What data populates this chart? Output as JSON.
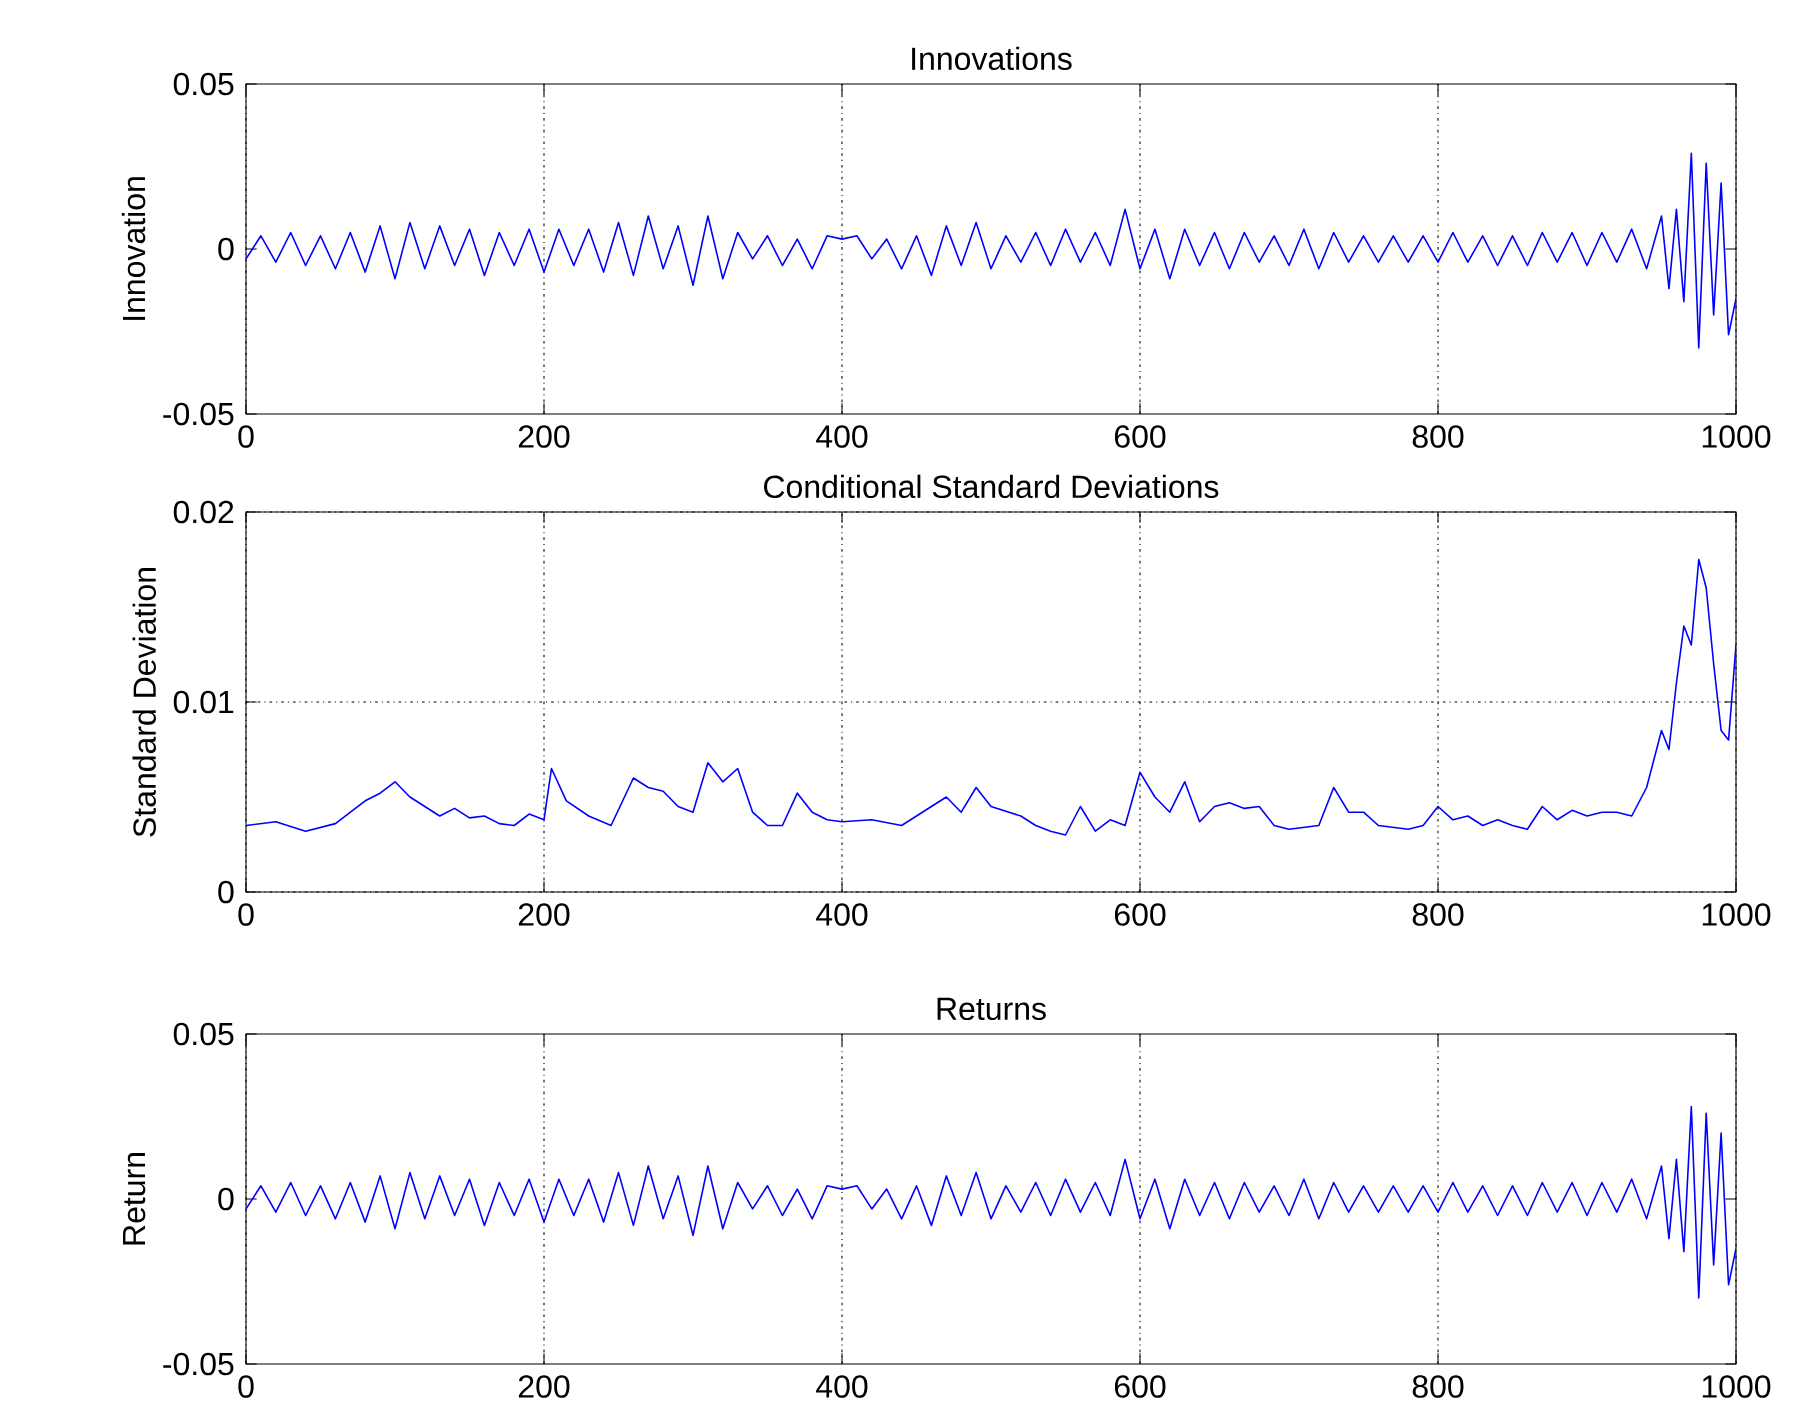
{
  "chart_data": [
    {
      "type": "line",
      "title": "Innovations",
      "ylabel": "Innovation",
      "grid": "x",
      "xlim": [
        0,
        1000
      ],
      "ylim": [
        -0.05,
        0.05
      ],
      "xticks": [
        0,
        200,
        400,
        600,
        800,
        1000
      ],
      "yticks": [
        -0.05,
        0,
        0.05
      ],
      "x": [
        0,
        10,
        20,
        30,
        40,
        50,
        60,
        70,
        80,
        90,
        100,
        110,
        120,
        130,
        140,
        150,
        160,
        170,
        180,
        190,
        200,
        210,
        220,
        230,
        240,
        250,
        260,
        270,
        280,
        290,
        300,
        310,
        320,
        330,
        340,
        350,
        360,
        370,
        380,
        390,
        400,
        410,
        420,
        430,
        440,
        450,
        460,
        470,
        480,
        490,
        500,
        510,
        520,
        530,
        540,
        550,
        560,
        570,
        580,
        590,
        600,
        610,
        620,
        630,
        640,
        650,
        660,
        670,
        680,
        690,
        700,
        710,
        720,
        730,
        740,
        750,
        760,
        770,
        780,
        790,
        800,
        810,
        820,
        830,
        840,
        850,
        860,
        870,
        880,
        890,
        900,
        910,
        920,
        930,
        940,
        950,
        955,
        960,
        965,
        970,
        975,
        980,
        985,
        990,
        995,
        1000
      ],
      "series": [
        {
          "color": "#0000ff",
          "values": [
            -0.003,
            0.004,
            -0.004,
            0.005,
            -0.005,
            0.004,
            -0.006,
            0.005,
            -0.007,
            0.007,
            -0.009,
            0.008,
            -0.006,
            0.007,
            -0.005,
            0.006,
            -0.008,
            0.005,
            -0.005,
            0.006,
            -0.007,
            0.006,
            -0.005,
            0.006,
            -0.007,
            0.008,
            -0.008,
            0.01,
            -0.006,
            0.007,
            -0.011,
            0.01,
            -0.009,
            0.005,
            -0.003,
            0.004,
            -0.005,
            0.003,
            -0.006,
            0.004,
            0.003,
            0.004,
            -0.003,
            0.003,
            -0.006,
            0.004,
            -0.008,
            0.007,
            -0.005,
            0.008,
            -0.006,
            0.004,
            -0.004,
            0.005,
            -0.005,
            0.006,
            -0.004,
            0.005,
            -0.005,
            0.012,
            -0.006,
            0.006,
            -0.009,
            0.006,
            -0.005,
            0.005,
            -0.006,
            0.005,
            -0.004,
            0.004,
            -0.005,
            0.006,
            -0.006,
            0.005,
            -0.004,
            0.004,
            -0.004,
            0.004,
            -0.004,
            0.004,
            -0.004,
            0.005,
            -0.004,
            0.004,
            -0.005,
            0.004,
            -0.005,
            0.005,
            -0.004,
            0.005,
            -0.005,
            0.005,
            -0.004,
            0.006,
            -0.006,
            0.01,
            -0.012,
            0.012,
            -0.016,
            0.029,
            -0.03,
            0.026,
            -0.02,
            0.02,
            -0.026,
            -0.015
          ]
        }
      ]
    },
    {
      "type": "line",
      "title": "Conditional Standard Deviations",
      "ylabel": "Standard Deviation",
      "grid": true,
      "xlim": [
        0,
        1000
      ],
      "ylim": [
        0,
        0.02
      ],
      "xticks": [
        0,
        200,
        400,
        600,
        800,
        1000
      ],
      "yticks": [
        0,
        0.01,
        0.02
      ],
      "x": [
        0,
        20,
        40,
        60,
        80,
        90,
        100,
        110,
        120,
        130,
        140,
        150,
        160,
        170,
        180,
        190,
        200,
        205,
        215,
        230,
        245,
        260,
        270,
        280,
        290,
        300,
        310,
        320,
        330,
        340,
        350,
        360,
        370,
        380,
        390,
        400,
        420,
        440,
        460,
        470,
        480,
        490,
        500,
        520,
        530,
        540,
        550,
        560,
        570,
        580,
        590,
        600,
        610,
        620,
        630,
        640,
        650,
        660,
        670,
        680,
        690,
        700,
        720,
        730,
        740,
        750,
        760,
        780,
        790,
        800,
        810,
        820,
        830,
        840,
        850,
        860,
        870,
        880,
        890,
        900,
        910,
        920,
        930,
        940,
        950,
        955,
        960,
        965,
        970,
        975,
        980,
        985,
        990,
        995,
        1000
      ],
      "series": [
        {
          "color": "#0000ff",
          "values": [
            0.0035,
            0.0037,
            0.0032,
            0.0036,
            0.0048,
            0.0052,
            0.0058,
            0.005,
            0.0045,
            0.004,
            0.0044,
            0.0039,
            0.004,
            0.0036,
            0.0035,
            0.0041,
            0.0038,
            0.0065,
            0.0048,
            0.004,
            0.0035,
            0.006,
            0.0055,
            0.0053,
            0.0045,
            0.0042,
            0.0068,
            0.0058,
            0.0065,
            0.0042,
            0.0035,
            0.0035,
            0.0052,
            0.0042,
            0.0038,
            0.0037,
            0.0038,
            0.0035,
            0.0045,
            0.005,
            0.0042,
            0.0055,
            0.0045,
            0.004,
            0.0035,
            0.0032,
            0.003,
            0.0045,
            0.0032,
            0.0038,
            0.0035,
            0.0063,
            0.005,
            0.0042,
            0.0058,
            0.0037,
            0.0045,
            0.0047,
            0.0044,
            0.0045,
            0.0035,
            0.0033,
            0.0035,
            0.0055,
            0.0042,
            0.0042,
            0.0035,
            0.0033,
            0.0035,
            0.0045,
            0.0038,
            0.004,
            0.0035,
            0.0038,
            0.0035,
            0.0033,
            0.0045,
            0.0038,
            0.0043,
            0.004,
            0.0042,
            0.0042,
            0.004,
            0.0055,
            0.0085,
            0.0075,
            0.011,
            0.014,
            0.013,
            0.0175,
            0.016,
            0.012,
            0.0085,
            0.008,
            0.013
          ]
        }
      ]
    },
    {
      "type": "line",
      "title": "Returns",
      "ylabel": "Return",
      "grid": "x",
      "xlim": [
        0,
        1000
      ],
      "ylim": [
        -0.05,
        0.05
      ],
      "xticks": [
        0,
        200,
        400,
        600,
        800,
        1000
      ],
      "yticks": [
        -0.05,
        0,
        0.05
      ],
      "x": [
        0,
        10,
        20,
        30,
        40,
        50,
        60,
        70,
        80,
        90,
        100,
        110,
        120,
        130,
        140,
        150,
        160,
        170,
        180,
        190,
        200,
        210,
        220,
        230,
        240,
        250,
        260,
        270,
        280,
        290,
        300,
        310,
        320,
        330,
        340,
        350,
        360,
        370,
        380,
        390,
        400,
        410,
        420,
        430,
        440,
        450,
        460,
        470,
        480,
        490,
        500,
        510,
        520,
        530,
        540,
        550,
        560,
        570,
        580,
        590,
        600,
        610,
        620,
        630,
        640,
        650,
        660,
        670,
        680,
        690,
        700,
        710,
        720,
        730,
        740,
        750,
        760,
        770,
        780,
        790,
        800,
        810,
        820,
        830,
        840,
        850,
        860,
        870,
        880,
        890,
        900,
        910,
        920,
        930,
        940,
        950,
        955,
        960,
        965,
        970,
        975,
        980,
        985,
        990,
        995,
        1000
      ],
      "series": [
        {
          "color": "#0000ff",
          "values": [
            -0.003,
            0.004,
            -0.004,
            0.005,
            -0.005,
            0.004,
            -0.006,
            0.005,
            -0.007,
            0.007,
            -0.009,
            0.008,
            -0.006,
            0.007,
            -0.005,
            0.006,
            -0.008,
            0.005,
            -0.005,
            0.006,
            -0.007,
            0.006,
            -0.005,
            0.006,
            -0.007,
            0.008,
            -0.008,
            0.01,
            -0.006,
            0.007,
            -0.011,
            0.01,
            -0.009,
            0.005,
            -0.003,
            0.004,
            -0.005,
            0.003,
            -0.006,
            0.004,
            0.003,
            0.004,
            -0.003,
            0.003,
            -0.006,
            0.004,
            -0.008,
            0.007,
            -0.005,
            0.008,
            -0.006,
            0.004,
            -0.004,
            0.005,
            -0.005,
            0.006,
            -0.004,
            0.005,
            -0.005,
            0.012,
            -0.006,
            0.006,
            -0.009,
            0.006,
            -0.005,
            0.005,
            -0.006,
            0.005,
            -0.004,
            0.004,
            -0.005,
            0.006,
            -0.006,
            0.005,
            -0.004,
            0.004,
            -0.004,
            0.004,
            -0.004,
            0.004,
            -0.004,
            0.005,
            -0.004,
            0.004,
            -0.005,
            0.004,
            -0.005,
            0.005,
            -0.004,
            0.005,
            -0.005,
            0.005,
            -0.004,
            0.006,
            -0.006,
            0.01,
            -0.012,
            0.012,
            -0.016,
            0.028,
            -0.03,
            0.026,
            -0.02,
            0.02,
            -0.026,
            -0.015
          ]
        }
      ]
    }
  ]
}
